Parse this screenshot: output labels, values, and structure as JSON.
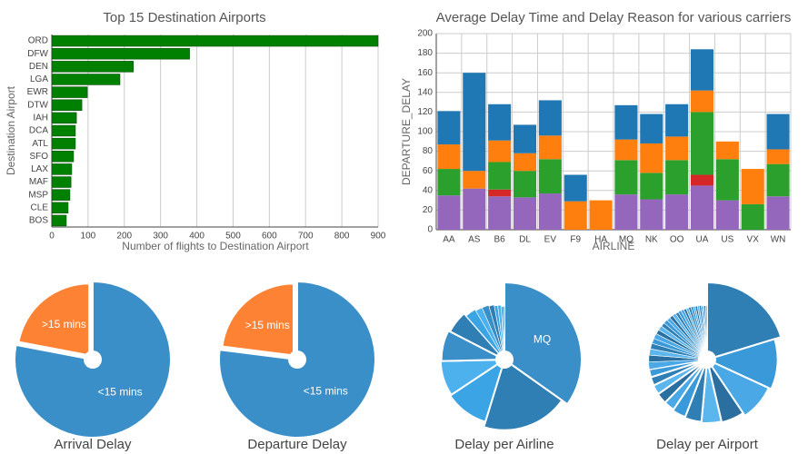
{
  "chart_data": [
    {
      "type": "hbar",
      "title": "Top 15 Destination Airports",
      "xlabel": "Number of flights to Destination Airport",
      "ylabel": "Destination Airport",
      "categories": [
        "ORD",
        "DFW",
        "DEN",
        "LGA",
        "EWR",
        "DTW",
        "IAH",
        "DCA",
        "ATL",
        "SFO",
        "LAX",
        "MAF",
        "MSP",
        "CLE",
        "BOS"
      ],
      "values": [
        900,
        380,
        225,
        188,
        98,
        83,
        68,
        65,
        65,
        60,
        55,
        53,
        50,
        45,
        40
      ],
      "color": "#008000",
      "xlim": [
        0,
        900
      ],
      "xticks": [
        0,
        100,
        200,
        300,
        400,
        500,
        600,
        700,
        800,
        900
      ],
      "grid": true
    },
    {
      "type": "stacked_bar",
      "title": "Average Delay Time and Delay Reason for various carriers",
      "xlabel": "AIRLINE",
      "ylabel": "DEPARTURE_DELAY",
      "categories": [
        "AA",
        "AS",
        "B6",
        "DL",
        "EV",
        "F9",
        "HA",
        "MQ",
        "NK",
        "OO",
        "UA",
        "US",
        "VX",
        "WN"
      ],
      "series": [
        {
          "color": "#9467bd",
          "values": [
            35,
            42,
            34,
            33,
            37,
            0,
            0,
            36,
            31,
            36,
            45,
            30,
            0,
            34
          ]
        },
        {
          "color": "#d62728",
          "values": [
            0,
            0,
            7,
            0,
            0,
            0,
            0,
            0,
            0,
            0,
            11,
            0,
            0,
            0
          ]
        },
        {
          "color": "#2ca02c",
          "values": [
            27,
            0,
            28,
            27,
            35,
            0,
            0,
            35,
            27,
            35,
            64,
            42,
            26,
            33
          ]
        },
        {
          "color": "#ff7f0e",
          "values": [
            25,
            18,
            22,
            18,
            24,
            29,
            30,
            21,
            30,
            24,
            22,
            18,
            36,
            15
          ]
        },
        {
          "color": "#1f77b4",
          "values": [
            34,
            100,
            37,
            29,
            36,
            27,
            0,
            35,
            30,
            33,
            42,
            0,
            0,
            36
          ]
        }
      ],
      "ylim": [
        0,
        200
      ],
      "yticks": [
        0,
        20,
        40,
        60,
        80,
        100,
        120,
        140,
        160,
        180,
        200
      ],
      "grid": true
    },
    {
      "type": "pie",
      "title": "Arrival Delay",
      "categories": [
        "<15 mins",
        ">15 mins"
      ],
      "values": [
        78,
        22
      ],
      "colors": [
        "#3a8fc9",
        "#fd8234"
      ]
    },
    {
      "type": "pie",
      "title": "Departure Delay",
      "categories": [
        "<15 mins",
        ">15 mins"
      ],
      "values": [
        77,
        23
      ],
      "colors": [
        "#3a8fc9",
        "#fd8234"
      ]
    },
    {
      "type": "rose",
      "title": "Delay per Airline",
      "categories": [
        "MQ",
        null,
        null,
        null,
        null,
        null,
        null,
        null,
        null,
        null,
        null,
        null,
        null,
        null
      ],
      "values": [
        35,
        20,
        11,
        9,
        8,
        6,
        3,
        2,
        2,
        1.5,
        1,
        1,
        0.5,
        0.5
      ],
      "colors": [
        "#3a8fc9",
        "#2f7fb5",
        "#3aa4e4",
        "#4db1ee"
      ]
    },
    {
      "type": "rose",
      "title": "Delay per Airport",
      "values": [
        14,
        8,
        6,
        4,
        3.5,
        3,
        2.5,
        2,
        2,
        1.8,
        1.6,
        1.5,
        1.4,
        1.3,
        1.2,
        1.1,
        1,
        1,
        0.9,
        0.9,
        0.8,
        0.8,
        0.7,
        0.7,
        0.7,
        0.6,
        0.6,
        0.6,
        0.5,
        0.5,
        0.5,
        0.5,
        0.4,
        0.4,
        0.4,
        0.4,
        0.3,
        0.3,
        0.3,
        0.3
      ],
      "colors": [
        "#2f7fb5",
        "#3a9ad9",
        "#4aa8e6",
        "#2a6f9f",
        "#5bb6ee"
      ]
    }
  ]
}
